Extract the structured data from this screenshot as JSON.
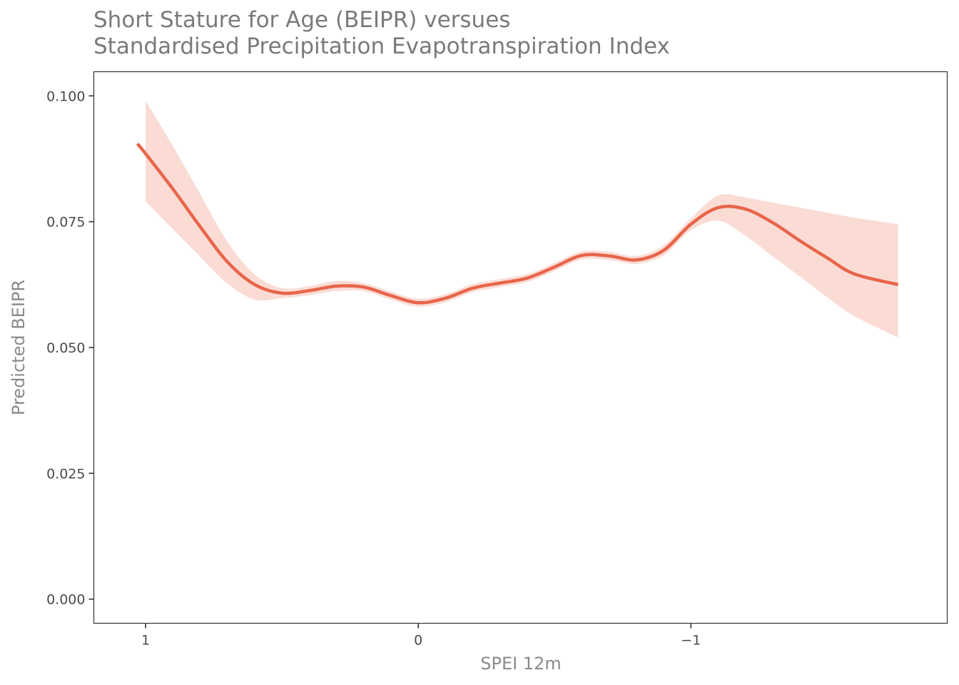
{
  "chart_data": {
    "type": "line",
    "title": "Short Stature for Age (BEIPR) versues\nStandardised Precipitation Evapotranspiration Index",
    "xlabel": "SPEI 12m",
    "ylabel": "Predicted BEIPR",
    "x_reversed": true,
    "xlim": [
      1.19,
      -1.94
    ],
    "ylim": [
      -0.0048,
      0.1048
    ],
    "x_ticks": [
      1,
      0,
      -1
    ],
    "x_tick_labels": [
      "1",
      "0",
      "−1"
    ],
    "y_ticks": [
      0.0,
      0.025,
      0.05,
      0.075,
      0.1
    ],
    "y_tick_labels": [
      "0.000",
      "0.025",
      "0.050",
      "0.075",
      "0.100"
    ],
    "grid": false,
    "series": [
      {
        "type": "line",
        "color": "#e8654a",
        "x": [
          1.03,
          1.0,
          0.9,
          0.8,
          0.7,
          0.6,
          0.5,
          0.4,
          0.3,
          0.2,
          0.1,
          0.0,
          -0.1,
          -0.2,
          -0.3,
          -0.4,
          -0.5,
          -0.6,
          -0.7,
          -0.8,
          -0.9,
          -1.0,
          -1.1,
          -1.2,
          -1.3,
          -1.4,
          -1.5,
          -1.6,
          -1.76
        ],
        "y": [
          0.0905,
          0.0885,
          0.0815,
          0.074,
          0.067,
          0.0625,
          0.0608,
          0.0613,
          0.0622,
          0.062,
          0.0603,
          0.0589,
          0.0598,
          0.0618,
          0.0628,
          0.0638,
          0.066,
          0.0683,
          0.0682,
          0.0674,
          0.0693,
          0.0745,
          0.0778,
          0.0775,
          0.0748,
          0.0712,
          0.0678,
          0.0646,
          0.0625
        ]
      },
      {
        "type": "band",
        "color": "#fadcd5",
        "x": [
          1.0,
          0.9,
          0.8,
          0.7,
          0.6,
          0.5,
          0.4,
          0.3,
          0.2,
          0.1,
          0.0,
          -0.1,
          -0.2,
          -0.3,
          -0.4,
          -0.5,
          -0.6,
          -0.7,
          -0.8,
          -0.9,
          -1.0,
          -1.1,
          -1.2,
          -1.3,
          -1.4,
          -1.5,
          -1.6,
          -1.76
        ],
        "upper": [
          0.099,
          0.09,
          0.0805,
          0.071,
          0.0645,
          0.0618,
          0.0622,
          0.0632,
          0.0628,
          0.0611,
          0.0597,
          0.0606,
          0.0626,
          0.0636,
          0.0646,
          0.0668,
          0.0691,
          0.069,
          0.0682,
          0.0703,
          0.0757,
          0.0802,
          0.0798,
          0.0788,
          0.0778,
          0.0768,
          0.0758,
          0.0745
        ],
        "lower": [
          0.079,
          0.0735,
          0.068,
          0.0627,
          0.0595,
          0.0598,
          0.0604,
          0.0612,
          0.0612,
          0.0595,
          0.0581,
          0.059,
          0.061,
          0.062,
          0.063,
          0.0652,
          0.0675,
          0.0674,
          0.0666,
          0.0683,
          0.0733,
          0.0752,
          0.0722,
          0.0681,
          0.0641,
          0.06,
          0.0562,
          0.052
        ]
      }
    ]
  }
}
